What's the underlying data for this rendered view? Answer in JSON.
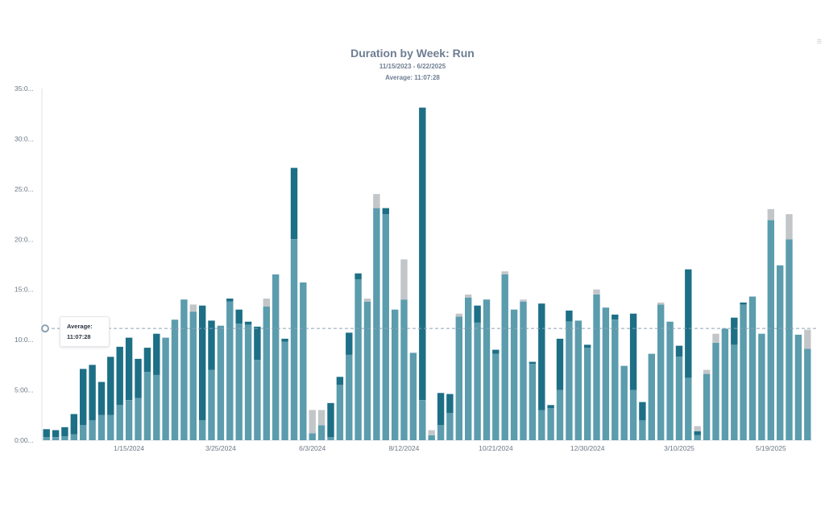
{
  "chart_data": {
    "type": "bar",
    "title": "Duration by Week: Run",
    "subtitle": "11/15/2023 - 6/22/2025",
    "average_label": "Average: 11:07:28",
    "tooltip": {
      "label": "Average:",
      "value": "11:07:28"
    },
    "y_ticks": [
      "0:00...",
      "5:00...",
      "10:0...",
      "15:0...",
      "20:0...",
      "25:0...",
      "30:0...",
      "35:0..."
    ],
    "x_tick_labels": [
      "1/15/2024",
      "3/25/2024",
      "6/3/2024",
      "8/12/2024",
      "10/21/2024",
      "12/30/2024",
      "3/10/2025",
      "5/19/2025"
    ],
    "x_tick_positions": [
      9,
      19,
      29,
      39,
      49,
      59,
      69,
      79
    ],
    "ylim": [
      0,
      35
    ],
    "average": 11.12,
    "stacked": true,
    "series": [
      {
        "color": "#5b9cad",
        "values": [
          0.3,
          0.3,
          0.4,
          0.6,
          1.5,
          2,
          2.5,
          2.5,
          3.5,
          4,
          4.2,
          6.8,
          6.5,
          10.2,
          12,
          14,
          12.8,
          2,
          7,
          11.4,
          13.8,
          11.6,
          11.5,
          8,
          13.3,
          16.5,
          9.8,
          20,
          15.7,
          0.7,
          1.5,
          0.3,
          5.5,
          8.5,
          16,
          13.8,
          23.1,
          22.5,
          13,
          14,
          8.7,
          4,
          0.5,
          1.5,
          2.7,
          12.3,
          14.2,
          11.7,
          14,
          8.6,
          16.5,
          13,
          13.8,
          7.6,
          3,
          3.2,
          5,
          11.8,
          11.9,
          9.2,
          14.5,
          13.2,
          12,
          7.4,
          5,
          2,
          8.6,
          13.5,
          11.8,
          8.3,
          6.2,
          0.5,
          6.6,
          9.7,
          11.1,
          9.5,
          13.5,
          14.3,
          10.6,
          21.9,
          17.4,
          20,
          10.5,
          9.1
        ]
      },
      {
        "color": "#1d6f86",
        "values": [
          0.8,
          0.7,
          0.9,
          2,
          5.6,
          5.5,
          3.3,
          5.8,
          5.8,
          6.2,
          3.9,
          2.4,
          4.1,
          0,
          0,
          0,
          0,
          11.4,
          4.9,
          0,
          0.3,
          1.4,
          0.3,
          3.3,
          0,
          0,
          0.3,
          7.1,
          0,
          0,
          0,
          3.4,
          0.8,
          2.2,
          0.6,
          0,
          0,
          0.6,
          0,
          0,
          0,
          29.1,
          0,
          3.2,
          1.9,
          0,
          0,
          1.7,
          0,
          0.4,
          0,
          0,
          0,
          0.2,
          10.6,
          0.3,
          5.1,
          1.1,
          0,
          0.3,
          0,
          0,
          0.5,
          0,
          7.6,
          1.8,
          0,
          0,
          0,
          1.1,
          10.8,
          0.4,
          0,
          0,
          0,
          2.7,
          0.2,
          0,
          0,
          0,
          0,
          0,
          0,
          0
        ]
      },
      {
        "color": "#c3c6c9",
        "values": [
          0,
          0,
          0,
          0,
          0,
          0,
          0,
          0,
          0,
          0,
          0,
          0,
          0,
          0,
          0,
          0,
          0.7,
          0,
          0,
          0,
          0,
          0,
          0,
          0,
          0.8,
          0,
          0,
          0,
          0,
          2.3,
          1.5,
          0,
          0,
          0,
          0,
          0.3,
          1.4,
          0,
          0,
          4,
          0,
          0,
          0.5,
          0,
          0,
          0.3,
          0.3,
          0,
          0,
          0,
          0.3,
          0,
          0.2,
          0,
          0,
          0,
          0,
          0,
          0,
          0,
          0.5,
          0,
          0,
          0,
          0,
          0,
          0,
          0.2,
          0,
          0,
          0,
          0.5,
          0.4,
          0.9,
          0,
          0,
          0,
          0,
          0,
          1.1,
          0,
          2.5,
          0,
          1.9
        ]
      }
    ]
  }
}
